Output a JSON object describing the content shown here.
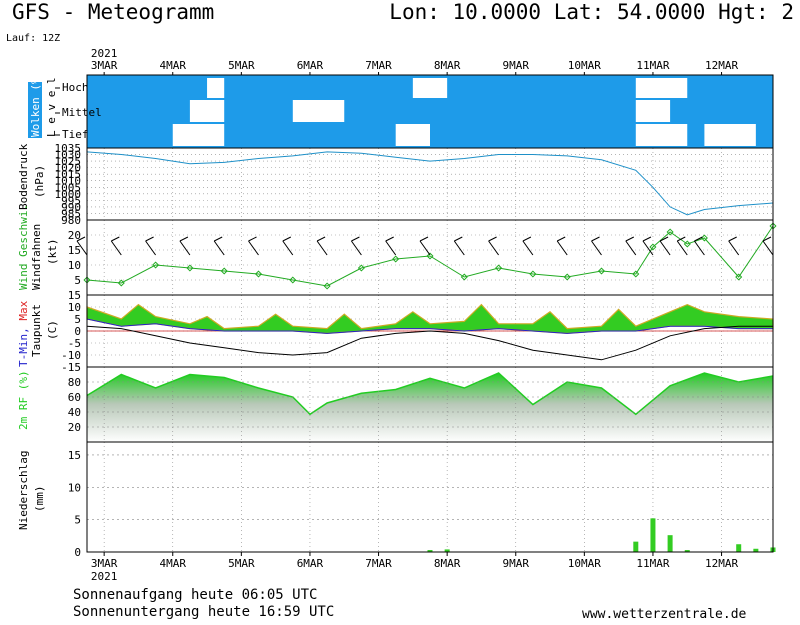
{
  "header": {
    "title": "GFS - Meteogramm",
    "lon_label": "Lon:",
    "lon": "10.0000",
    "lat_label": "Lat:",
    "lat": "54.0000",
    "hgt_label": "Hgt:",
    "hgt": "2",
    "run": "Lauf: 12Z",
    "year_top": "2021",
    "year_bottom": "2021"
  },
  "footer": {
    "sunrise": "Sonnenaufgang heute 06:05 UTC",
    "sunset": "Sonnenuntergang heute 16:59 UTC",
    "credit": "www.wetterzentrale.de"
  },
  "colors": {
    "cloud_sky": "#1e9be9",
    "pressure": "#1e90c8",
    "wind_speed": "#22aa22",
    "temp_fill": "#33cc22",
    "temp_max_top": "#ccaa22",
    "dewpoint": "#000000",
    "tmin": "#2222cc",
    "rh": "#22cc22",
    "precip": "#33cc22"
  },
  "chart_data": {
    "type": "line",
    "x_axis": {
      "type": "date",
      "start": "2021-03-02T18:00",
      "end": "2021-03-12T18:00",
      "ticks": [
        "3MAR",
        "4MAR",
        "5MAR",
        "6MAR",
        "7MAR",
        "8MAR",
        "9MAR",
        "10MAR",
        "11MAR",
        "12MAR"
      ]
    },
    "panels": [
      {
        "id": "clouds",
        "ylabel": "Wolken (%)",
        "ylabel2": "L e v e l",
        "levels": [
          "Hoch",
          "Mittel",
          "Tief"
        ],
        "clear_periods": [
          {
            "level": "Hoch",
            "from": "2021-03-04T12:00",
            "to": "2021-03-04T18:00"
          },
          {
            "level": "Hoch",
            "from": "2021-03-07T12:00",
            "to": "2021-03-08T00:00"
          },
          {
            "level": "Hoch",
            "from": "2021-03-10T18:00",
            "to": "2021-03-11T12:00"
          },
          {
            "level": "Mittel",
            "from": "2021-03-04T06:00",
            "to": "2021-03-04T18:00"
          },
          {
            "level": "Mittel",
            "from": "2021-03-05T18:00",
            "to": "2021-03-06T12:00"
          },
          {
            "level": "Mittel",
            "from": "2021-03-10T18:00",
            "to": "2021-03-11T06:00"
          },
          {
            "level": "Tief",
            "from": "2021-03-04T00:00",
            "to": "2021-03-04T18:00"
          },
          {
            "level": "Tief",
            "from": "2021-03-07T06:00",
            "to": "2021-03-07T18:00"
          },
          {
            "level": "Tief",
            "from": "2021-03-10T18:00",
            "to": "2021-03-11T12:00"
          },
          {
            "level": "Tief",
            "from": "2021-03-11T18:00",
            "to": "2021-03-12T12:00"
          }
        ]
      },
      {
        "id": "pressure",
        "ylabel": "Bodendruck",
        "unit": "(hPa)",
        "ylim": [
          980,
          1035
        ],
        "yticks": [
          1035,
          1030,
          1025,
          1020,
          1015,
          1010,
          1005,
          1000,
          995,
          990,
          985,
          980
        ],
        "series": [
          {
            "name": "",
            "x": [
              "2021-03-02T18:00",
              "2021-03-03T06:00",
              "2021-03-03T18:00",
              "2021-03-04T06:00",
              "2021-03-04T18:00",
              "2021-03-05T06:00",
              "2021-03-05T18:00",
              "2021-03-06T06:00",
              "2021-03-06T18:00",
              "2021-03-07T06:00",
              "2021-03-07T18:00",
              "2021-03-08T06:00",
              "2021-03-08T18:00",
              "2021-03-09T06:00",
              "2021-03-09T18:00",
              "2021-03-10T06:00",
              "2021-03-10T18:00",
              "2021-03-11T00:00",
              "2021-03-11T06:00",
              "2021-03-11T12:00",
              "2021-03-11T18:00",
              "2021-03-12T06:00",
              "2021-03-12T18:00"
            ],
            "y": [
              1032,
              1030,
              1027,
              1023,
              1024,
              1027,
              1029,
              1032,
              1031,
              1028,
              1025,
              1027,
              1030,
              1030,
              1029,
              1026,
              1018,
              1005,
              990,
              984,
              988,
              991,
              993
            ]
          }
        ]
      },
      {
        "id": "wind",
        "ylabel": "Wind Geschwi.",
        "ylabel2": "Windfahnen",
        "unit": "(kt)",
        "ylim": [
          0,
          25
        ],
        "yticks": [
          20,
          15,
          10,
          5
        ],
        "series": [
          {
            "name": "Wind Geschwi.",
            "x": [
              "2021-03-02T18:00",
              "2021-03-03T06:00",
              "2021-03-03T18:00",
              "2021-03-04T06:00",
              "2021-03-04T18:00",
              "2021-03-05T06:00",
              "2021-03-05T18:00",
              "2021-03-06T06:00",
              "2021-03-06T18:00",
              "2021-03-07T06:00",
              "2021-03-07T18:00",
              "2021-03-08T06:00",
              "2021-03-08T18:00",
              "2021-03-09T06:00",
              "2021-03-09T18:00",
              "2021-03-10T06:00",
              "2021-03-10T18:00",
              "2021-03-11T00:00",
              "2021-03-11T06:00",
              "2021-03-11T12:00",
              "2021-03-11T18:00",
              "2021-03-12T06:00",
              "2021-03-12T18:00"
            ],
            "y": [
              5,
              4,
              10,
              9,
              8,
              7,
              5,
              3,
              9,
              12,
              13,
              6,
              9,
              7,
              6,
              8,
              7,
              16,
              21,
              17,
              19,
              6,
              23
            ]
          }
        ]
      },
      {
        "id": "temperature",
        "ylabel": "T-Min, Max",
        "ylabel2": "Taupunkt",
        "unit": "(C)",
        "ylim": [
          -15,
          15
        ],
        "yticks": [
          15,
          10,
          5,
          0,
          -5,
          -10,
          -15
        ],
        "series": [
          {
            "name": "Max",
            "x": [
              "2021-03-02T18:00",
              "2021-03-03T06:00",
              "2021-03-03T12:00",
              "2021-03-03T18:00",
              "2021-03-04T06:00",
              "2021-03-04T12:00",
              "2021-03-04T18:00",
              "2021-03-05T06:00",
              "2021-03-05T12:00",
              "2021-03-05T18:00",
              "2021-03-06T06:00",
              "2021-03-06T12:00",
              "2021-03-06T18:00",
              "2021-03-07T06:00",
              "2021-03-07T12:00",
              "2021-03-07T18:00",
              "2021-03-08T06:00",
              "2021-03-08T12:00",
              "2021-03-08T18:00",
              "2021-03-09T06:00",
              "2021-03-09T12:00",
              "2021-03-09T18:00",
              "2021-03-10T06:00",
              "2021-03-10T12:00",
              "2021-03-10T18:00",
              "2021-03-11T06:00",
              "2021-03-11T12:00",
              "2021-03-11T18:00",
              "2021-03-12T06:00",
              "2021-03-12T18:00"
            ],
            "y": [
              10,
              5,
              11,
              6,
              3,
              6,
              1,
              2,
              7,
              2,
              1,
              7,
              1,
              3,
              8,
              3,
              4,
              11,
              3,
              3,
              8,
              1,
              2,
              9,
              2,
              8,
              11,
              8,
              6,
              5
            ]
          },
          {
            "name": "T-Min",
            "x": [
              "2021-03-02T18:00",
              "2021-03-03T06:00",
              "2021-03-03T18:00",
              "2021-03-04T06:00",
              "2021-03-04T18:00",
              "2021-03-05T06:00",
              "2021-03-05T18:00",
              "2021-03-06T06:00",
              "2021-03-06T18:00",
              "2021-03-07T06:00",
              "2021-03-07T18:00",
              "2021-03-08T06:00",
              "2021-03-08T18:00",
              "2021-03-09T06:00",
              "2021-03-09T18:00",
              "2021-03-10T06:00",
              "2021-03-10T18:00",
              "2021-03-11T06:00",
              "2021-03-11T18:00",
              "2021-03-12T06:00",
              "2021-03-12T18:00"
            ],
            "y": [
              5,
              2,
              3,
              1,
              0,
              0,
              0,
              -1,
              0,
              1,
              1,
              0,
              1,
              0,
              -1,
              0,
              0,
              2,
              2,
              1,
              1
            ]
          },
          {
            "name": "Taupunkt",
            "x": [
              "2021-03-02T18:00",
              "2021-03-03T06:00",
              "2021-03-03T18:00",
              "2021-03-04T06:00",
              "2021-03-04T18:00",
              "2021-03-05T06:00",
              "2021-03-05T18:00",
              "2021-03-06T06:00",
              "2021-03-06T18:00",
              "2021-03-07T06:00",
              "2021-03-07T18:00",
              "2021-03-08T06:00",
              "2021-03-08T18:00",
              "2021-03-09T06:00",
              "2021-03-09T18:00",
              "2021-03-10T06:00",
              "2021-03-10T18:00",
              "2021-03-11T06:00",
              "2021-03-11T18:00",
              "2021-03-12T06:00",
              "2021-03-12T18:00"
            ],
            "y": [
              2,
              1,
              -2,
              -5,
              -7,
              -9,
              -10,
              -9,
              -3,
              -1,
              0,
              -1,
              -4,
              -8,
              -10,
              -12,
              -8,
              -2,
              1,
              2,
              2
            ]
          }
        ]
      },
      {
        "id": "humidity",
        "ylabel": "2m RF (%)",
        "ylim": [
          0,
          100
        ],
        "yticks": [
          80,
          60,
          40,
          20
        ],
        "series": [
          {
            "name": "2m RF (%)",
            "x": [
              "2021-03-02T18:00",
              "2021-03-03T06:00",
              "2021-03-03T18:00",
              "2021-03-04T06:00",
              "2021-03-04T18:00",
              "2021-03-05T06:00",
              "2021-03-05T18:00",
              "2021-03-06T00:00",
              "2021-03-06T06:00",
              "2021-03-06T18:00",
              "2021-03-07T06:00",
              "2021-03-07T18:00",
              "2021-03-08T06:00",
              "2021-03-08T18:00",
              "2021-03-09T06:00",
              "2021-03-09T18:00",
              "2021-03-10T06:00",
              "2021-03-10T18:00",
              "2021-03-11T06:00",
              "2021-03-11T18:00",
              "2021-03-12T06:00",
              "2021-03-12T18:00"
            ],
            "y": [
              62,
              90,
              72,
              90,
              86,
              72,
              60,
              37,
              52,
              65,
              70,
              85,
              72,
              92,
              50,
              80,
              72,
              37,
              75,
              92,
              80,
              88
            ]
          }
        ]
      },
      {
        "id": "precip",
        "ylabel": "Niederschlag",
        "unit": "(mm)",
        "ylim": [
          0,
          17
        ],
        "yticks": [
          15,
          10,
          5,
          0
        ],
        "series": [
          {
            "name": "",
            "x": [
              "2021-03-07T18:00",
              "2021-03-08T00:00",
              "2021-03-10T18:00",
              "2021-03-11T00:00",
              "2021-03-11T06:00",
              "2021-03-11T12:00",
              "2021-03-12T06:00",
              "2021-03-12T12:00",
              "2021-03-12T18:00"
            ],
            "y": [
              0.3,
              0.4,
              1.6,
              5.2,
              2.6,
              0.3,
              1.2,
              0.5,
              0.7
            ]
          }
        ]
      }
    ]
  }
}
